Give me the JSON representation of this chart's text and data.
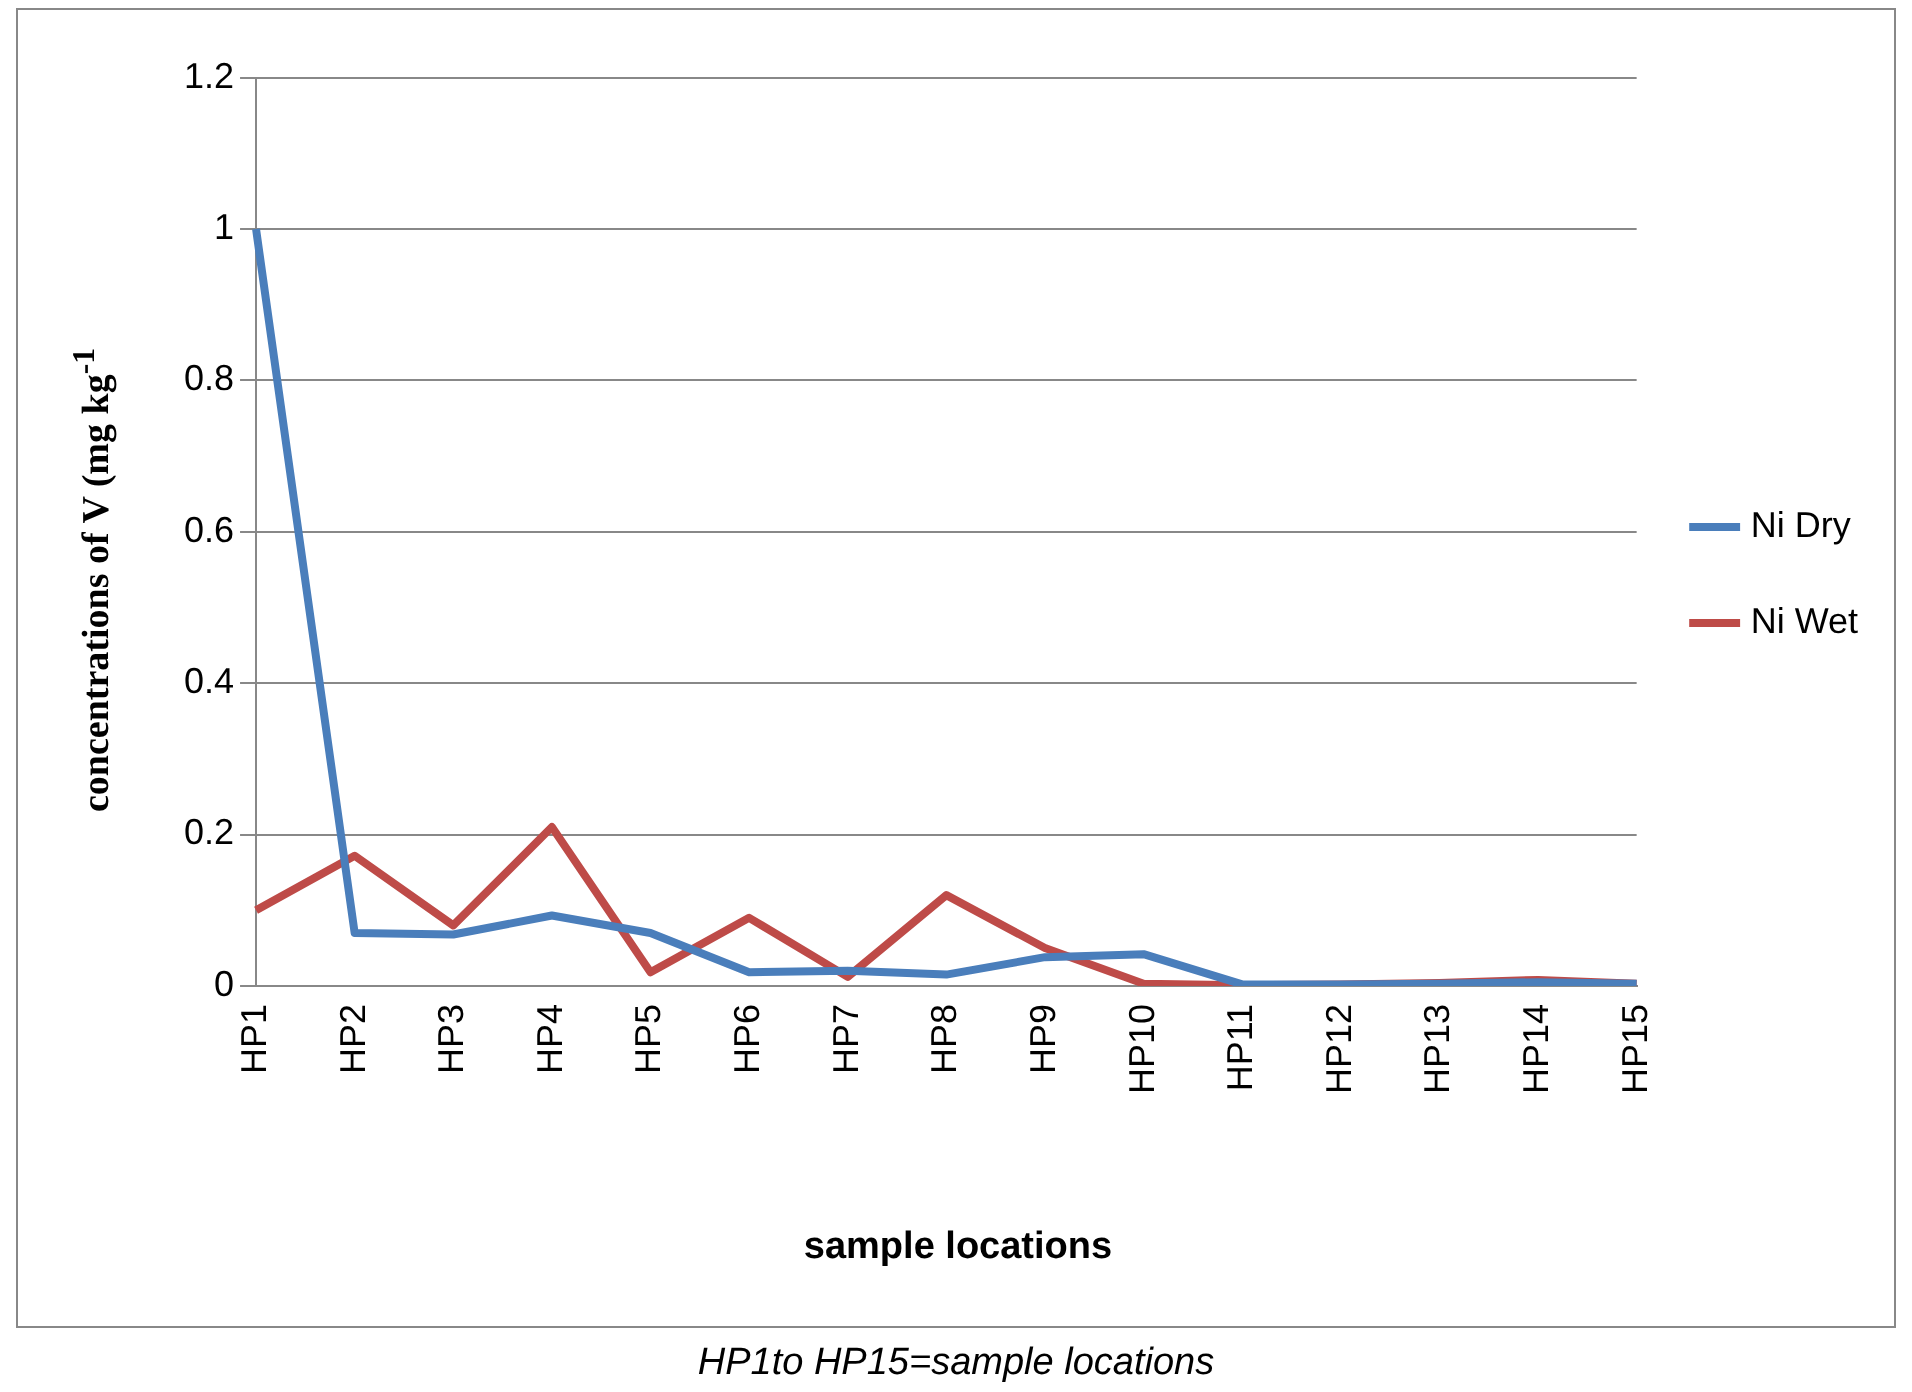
{
  "chart_data": {
    "type": "line",
    "xlabel": "sample locations",
    "ylabel": "concentrations of V (mg kg$^{-1}$",
    "categories": [
      "HP1",
      "HP2",
      "HP3",
      "HP4",
      "HP5",
      "HP6",
      "HP7",
      "HP8",
      "HP9",
      "HP10",
      "HP11",
      "HP12",
      "HP13",
      "HP14",
      "HP15"
    ],
    "series": [
      {
        "name": "Ni Dry",
        "color": "#4a7ebb",
        "values": [
          1,
          0.07,
          0.068,
          0.093,
          0.07,
          0.018,
          0.02,
          0.015,
          0.038,
          0.042,
          0.002,
          0.002,
          0.003,
          0.005,
          0.003
        ]
      },
      {
        "name": "Ni Wet",
        "color": "#be4b48",
        "values": [
          0.1,
          0.172,
          0.08,
          0.21,
          0.018,
          0.09,
          0.012,
          0.12,
          0.05,
          0.003,
          0.001,
          0.002,
          0.004,
          0.008,
          0.003
        ]
      }
    ],
    "ylim": [
      0,
      1.2
    ],
    "yticks": [
      0,
      0.2,
      0.4,
      0.6,
      0.8,
      1,
      1.2
    ],
    "grid": "y",
    "legend": "right",
    "marker": "none",
    "line_style": "solid",
    "annotations": [
      "HP1to HP15=sample locations"
    ]
  }
}
